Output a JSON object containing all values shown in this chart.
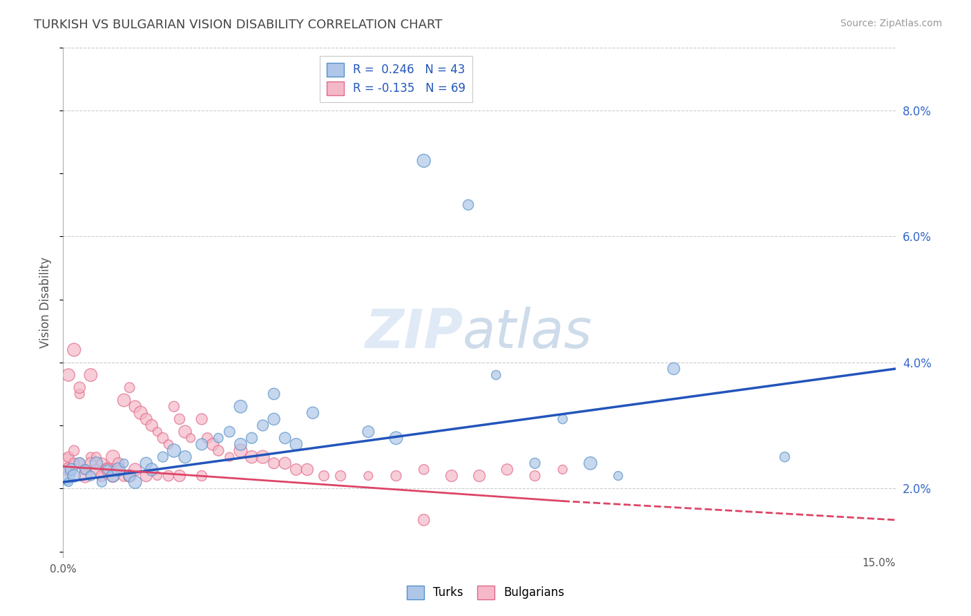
{
  "title": "TURKISH VS BULGARIAN VISION DISABILITY CORRELATION CHART",
  "source": "Source: ZipAtlas.com",
  "ylabel": "Vision Disability",
  "xlim": [
    0,
    0.15
  ],
  "ylim": [
    0.009,
    0.09
  ],
  "yticks": [
    0.02,
    0.04,
    0.06,
    0.08
  ],
  "ytick_labels": [
    "2.0%",
    "4.0%",
    "6.0%",
    "8.0%"
  ],
  "grid_color": "#cccccc",
  "background_color": "#ffffff",
  "turks_color": "#aec6e8",
  "turks_edge_color": "#5590c8",
  "bulgarians_color": "#f4b8c8",
  "bulgarians_edge_color": "#e06888",
  "trend_turks_color": "#2255bb",
  "trend_bulgarians_color": "#dd4466",
  "R_turks": 0.246,
  "N_turks": 43,
  "R_bulgarians": -0.135,
  "N_bulgarians": 69,
  "legend_label_turks": "Turks",
  "legend_label_bulgarians": "Bulgarians",
  "turks_x": [
    0.0005,
    0.001,
    0.0015,
    0.002,
    0.003,
    0.004,
    0.005,
    0.006,
    0.007,
    0.008,
    0.009,
    0.01,
    0.011,
    0.012,
    0.013,
    0.015,
    0.016,
    0.018,
    0.02,
    0.022,
    0.025,
    0.028,
    0.03,
    0.032,
    0.034,
    0.036,
    0.038,
    0.04,
    0.042,
    0.045,
    0.032,
    0.038,
    0.065,
    0.073,
    0.078,
    0.085,
    0.09,
    0.095,
    0.1,
    0.11,
    0.055,
    0.06,
    0.13
  ],
  "turks_y": [
    0.022,
    0.021,
    0.023,
    0.022,
    0.024,
    0.023,
    0.022,
    0.024,
    0.021,
    0.023,
    0.022,
    0.023,
    0.024,
    0.022,
    0.021,
    0.024,
    0.023,
    0.025,
    0.026,
    0.025,
    0.027,
    0.028,
    0.029,
    0.027,
    0.028,
    0.03,
    0.031,
    0.028,
    0.027,
    0.032,
    0.033,
    0.035,
    0.072,
    0.065,
    0.038,
    0.024,
    0.031,
    0.024,
    0.022,
    0.039,
    0.029,
    0.028,
    0.025
  ],
  "bulgarians_x": [
    0.0005,
    0.001,
    0.001,
    0.002,
    0.002,
    0.003,
    0.003,
    0.004,
    0.005,
    0.005,
    0.006,
    0.007,
    0.008,
    0.009,
    0.01,
    0.011,
    0.012,
    0.013,
    0.014,
    0.015,
    0.016,
    0.017,
    0.018,
    0.019,
    0.02,
    0.021,
    0.022,
    0.023,
    0.025,
    0.026,
    0.027,
    0.028,
    0.03,
    0.032,
    0.034,
    0.036,
    0.038,
    0.04,
    0.042,
    0.044,
    0.047,
    0.05,
    0.055,
    0.06,
    0.065,
    0.07,
    0.075,
    0.08,
    0.085,
    0.09,
    0.001,
    0.002,
    0.003,
    0.004,
    0.005,
    0.006,
    0.007,
    0.008,
    0.009,
    0.01,
    0.011,
    0.012,
    0.013,
    0.015,
    0.017,
    0.019,
    0.021,
    0.025,
    0.065
  ],
  "bulgarians_y": [
    0.024,
    0.025,
    0.038,
    0.026,
    0.042,
    0.024,
    0.035,
    0.023,
    0.025,
    0.038,
    0.025,
    0.024,
    0.023,
    0.025,
    0.024,
    0.034,
    0.036,
    0.033,
    0.032,
    0.031,
    0.03,
    0.029,
    0.028,
    0.027,
    0.033,
    0.031,
    0.029,
    0.028,
    0.031,
    0.028,
    0.027,
    0.026,
    0.025,
    0.026,
    0.025,
    0.025,
    0.024,
    0.024,
    0.023,
    0.023,
    0.022,
    0.022,
    0.022,
    0.022,
    0.023,
    0.022,
    0.022,
    0.023,
    0.022,
    0.023,
    0.023,
    0.024,
    0.036,
    0.022,
    0.024,
    0.023,
    0.022,
    0.023,
    0.022,
    0.023,
    0.022,
    0.022,
    0.023,
    0.022,
    0.022,
    0.022,
    0.022,
    0.022,
    0.015
  ],
  "trend_turks_x0": 0.0,
  "trend_turks_y0": 0.021,
  "trend_turks_x1": 0.15,
  "trend_turks_y1": 0.039,
  "trend_bulg_solid_x0": 0.0,
  "trend_bulg_solid_y0": 0.0235,
  "trend_bulg_solid_x1": 0.09,
  "trend_bulg_solid_y1": 0.018,
  "trend_bulg_dash_x0": 0.09,
  "trend_bulg_dash_y0": 0.018,
  "trend_bulg_dash_x1": 0.15,
  "trend_bulg_dash_y1": 0.015
}
